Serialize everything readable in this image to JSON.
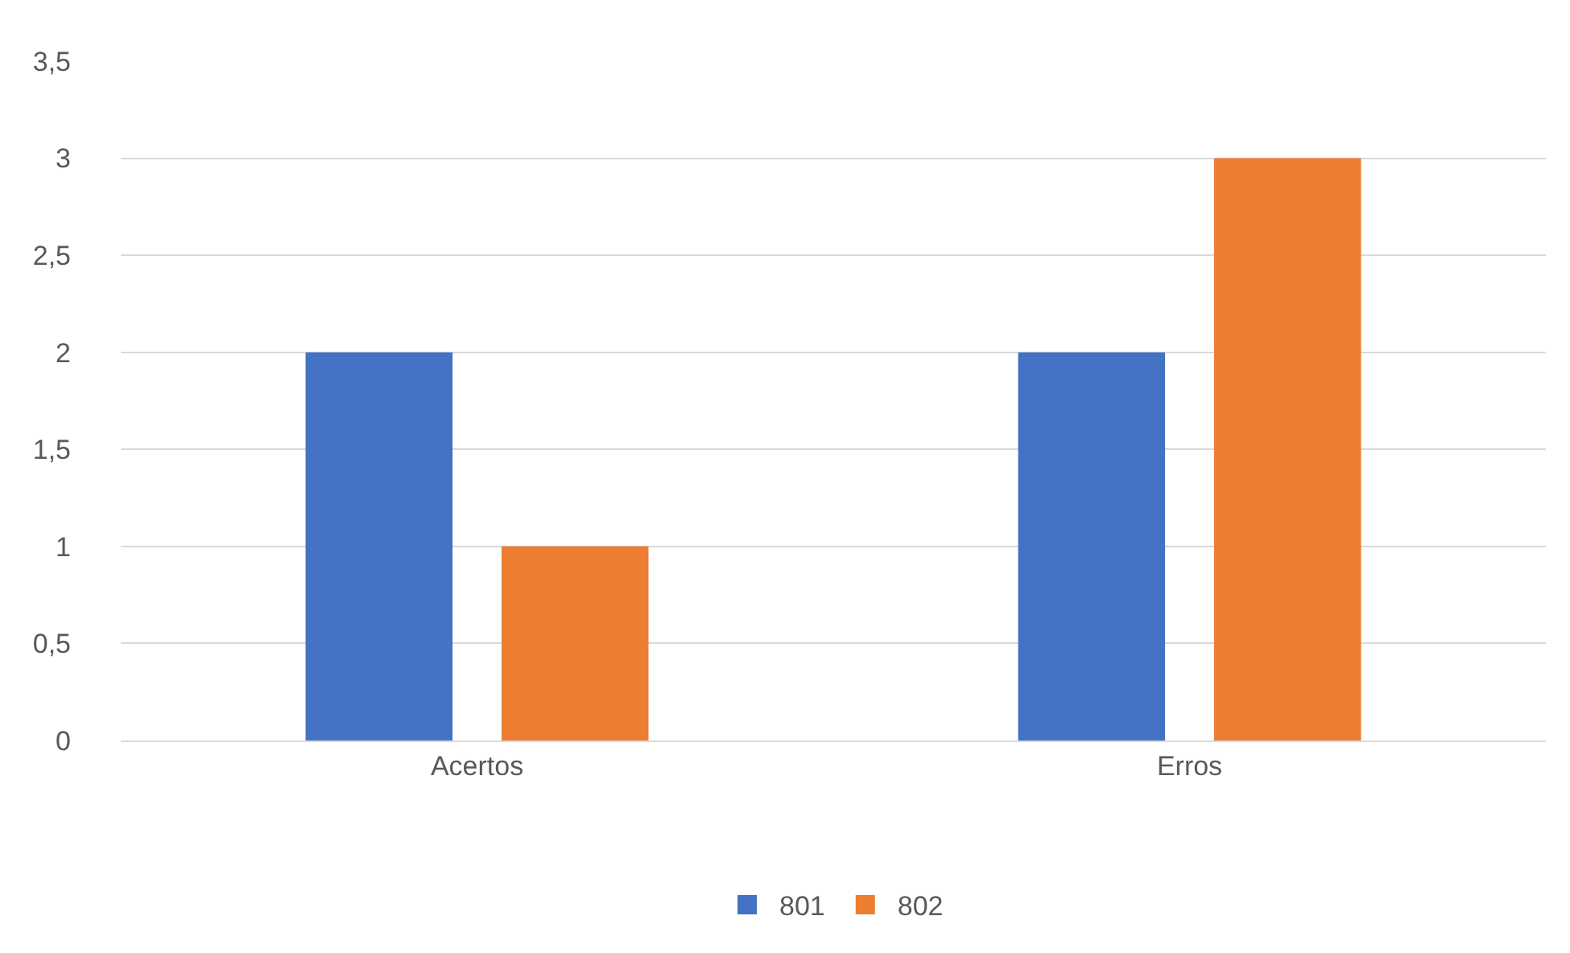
{
  "chart_data": {
    "type": "bar",
    "categories": [
      "Acertos",
      "Erros"
    ],
    "series": [
      {
        "name": "801",
        "color": "#4472c4",
        "values": [
          2,
          2
        ]
      },
      {
        "name": "802",
        "color": "#ed7d31",
        "values": [
          1,
          3
        ]
      }
    ],
    "ylim": [
      0,
      3.5
    ],
    "yticks": [
      0,
      {
        "value": 0.5,
        "label": "0,5"
      },
      1,
      {
        "value": 1.5,
        "label": "1,5"
      },
      2,
      {
        "value": 2.5,
        "label": "2,5"
      },
      3,
      {
        "value": 3.5,
        "label": "3,5"
      }
    ],
    "grid": "y",
    "legend": "bottom"
  }
}
